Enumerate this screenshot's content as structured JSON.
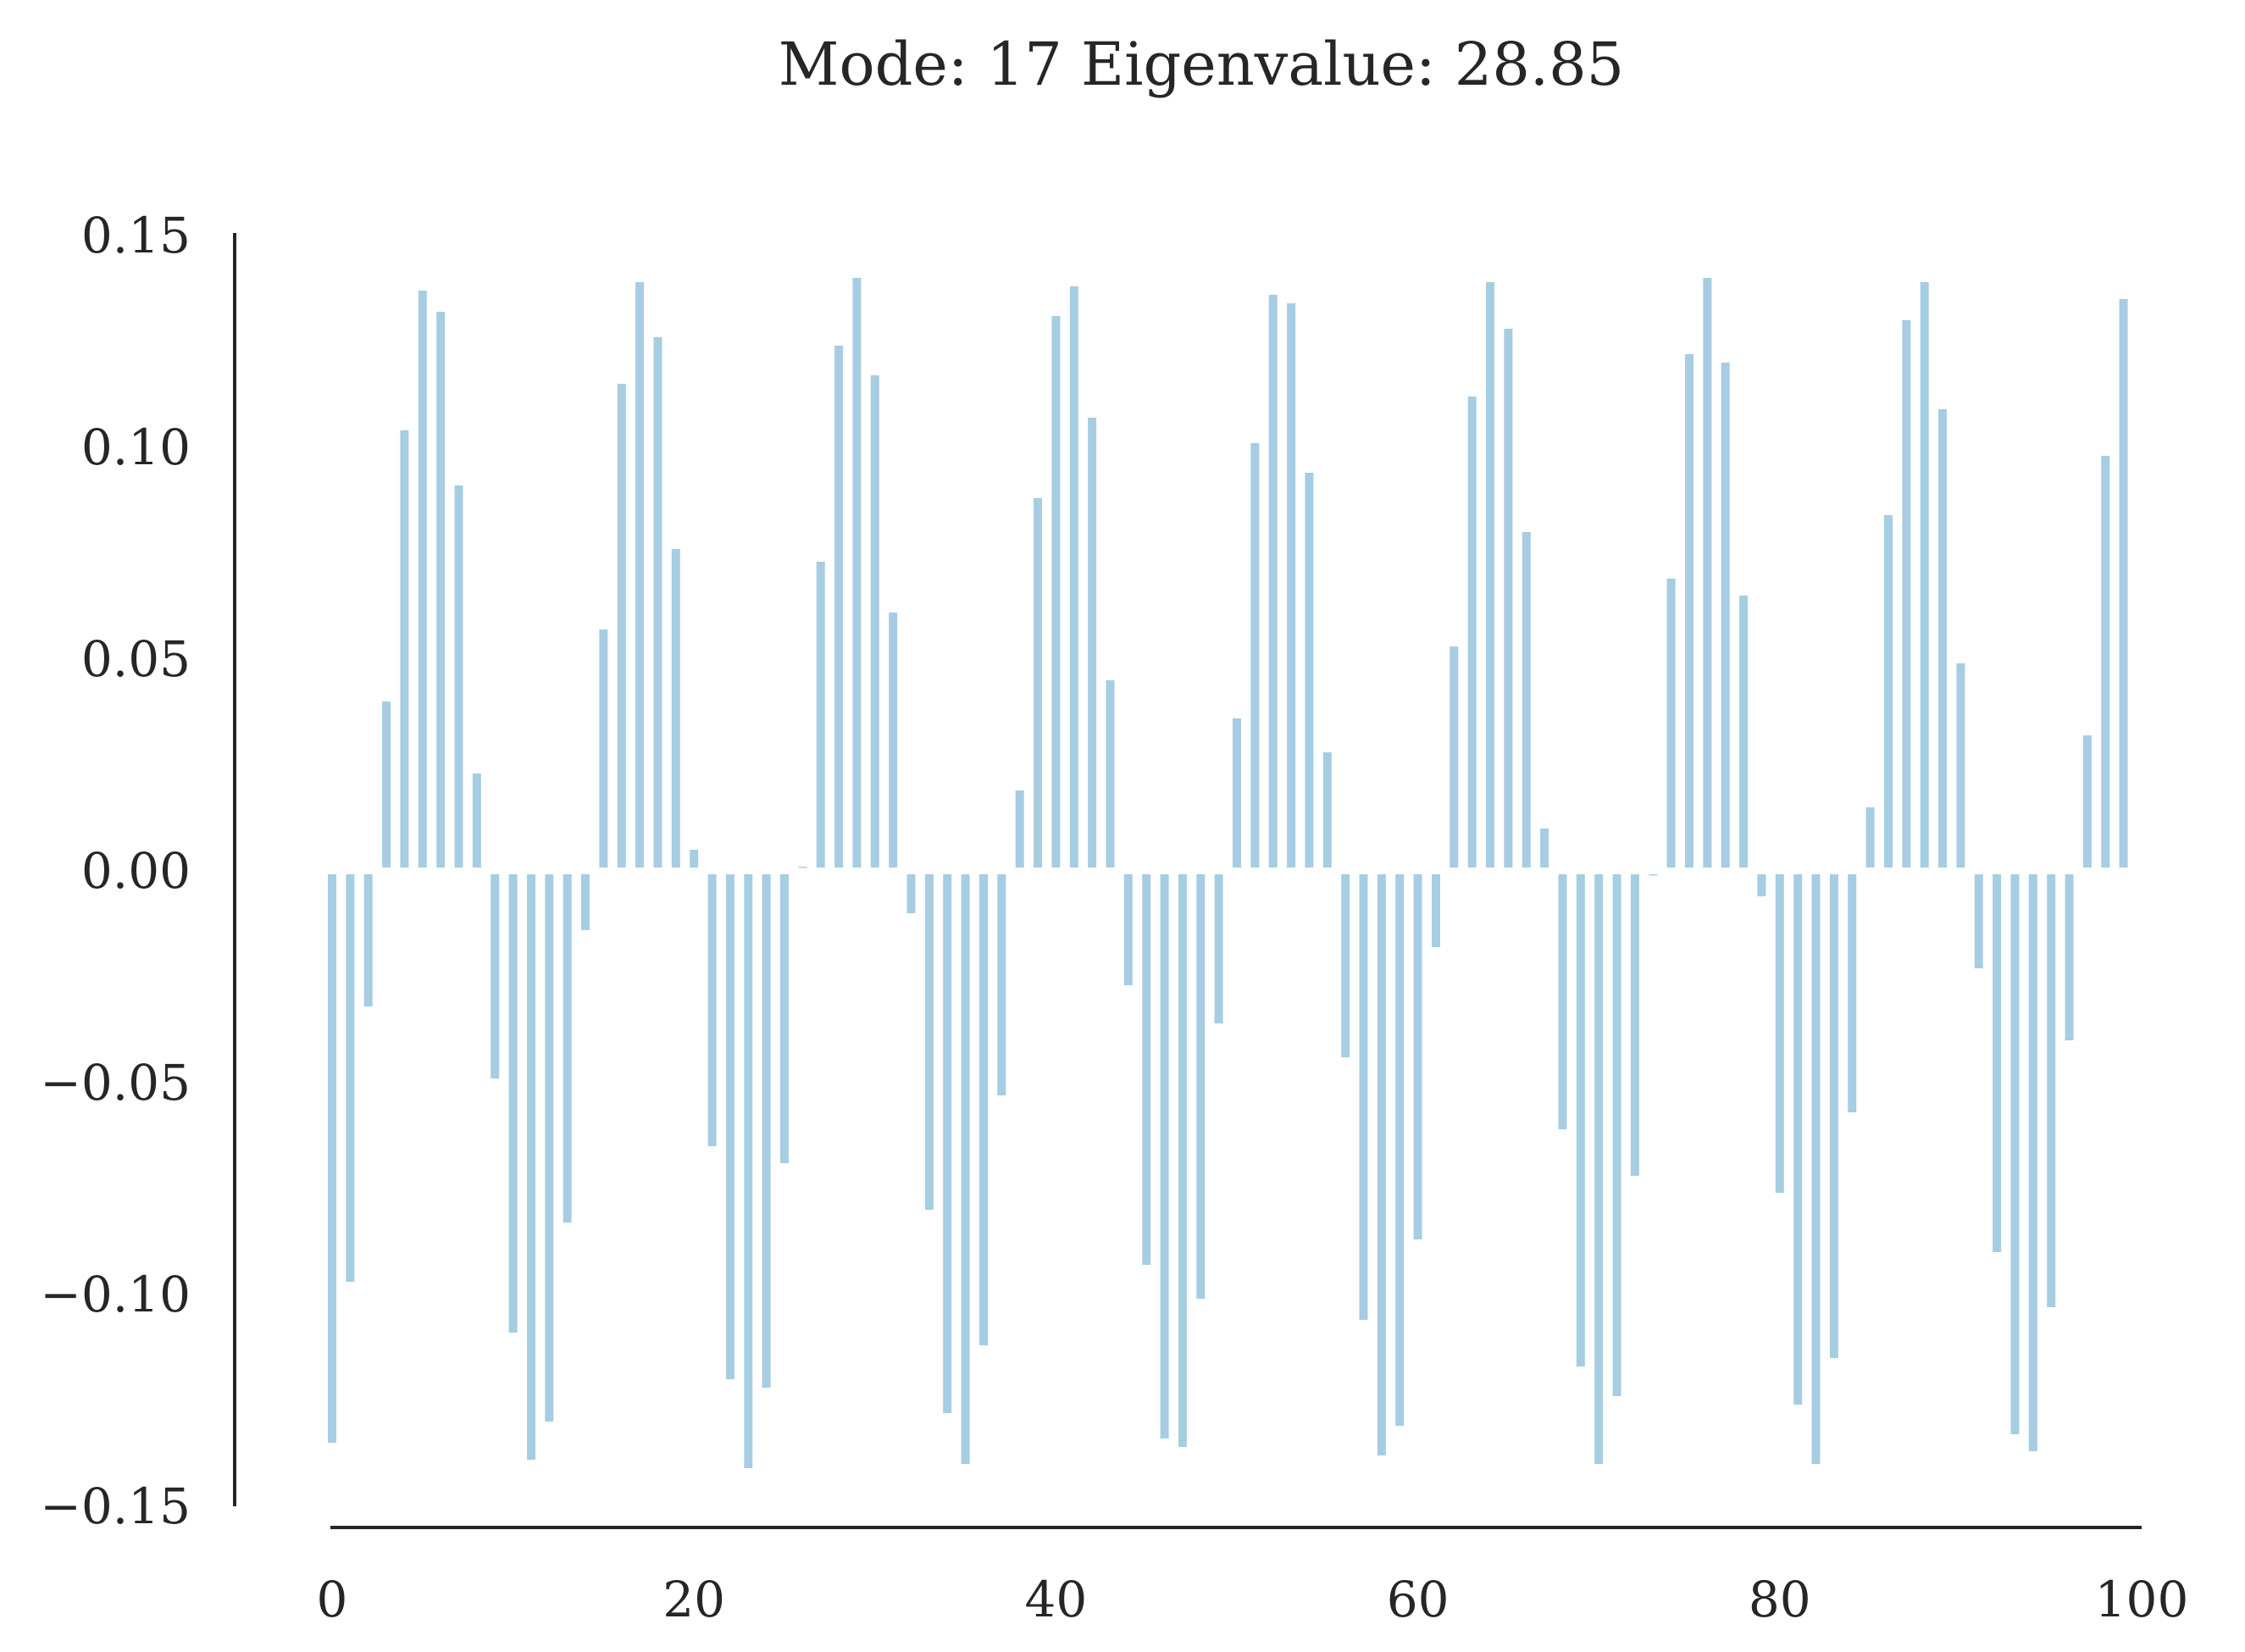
{
  "chart_data": {
    "type": "bar",
    "title": "Mode: 17 Eigenvalue: 28.85",
    "xlabel": "",
    "ylabel": "",
    "xlim": [
      0,
      100
    ],
    "ylim": [
      -0.15,
      0.15
    ],
    "x_ticks": [
      {
        "value": 0,
        "label": "0"
      },
      {
        "value": 20,
        "label": "20"
      },
      {
        "value": 40,
        "label": "40"
      },
      {
        "value": 60,
        "label": "60"
      },
      {
        "value": 80,
        "label": "80"
      },
      {
        "value": 100,
        "label": "100"
      }
    ],
    "y_ticks": [
      {
        "value": 0.15,
        "label": "0.15"
      },
      {
        "value": 0.1,
        "label": "0.10"
      },
      {
        "value": 0.05,
        "label": "0.05"
      },
      {
        "value": 0.0,
        "label": "0.00"
      },
      {
        "value": -0.05,
        "label": "−0.05"
      },
      {
        "value": -0.1,
        "label": "−0.10"
      },
      {
        "value": -0.15,
        "label": "−0.15"
      }
    ],
    "grid": false,
    "bar_color": "#a6cde2",
    "axis_color": "#262626",
    "x": [
      0,
      1,
      2,
      3,
      4,
      5,
      6,
      7,
      8,
      9,
      10,
      11,
      12,
      13,
      14,
      15,
      16,
      17,
      18,
      19,
      20,
      21,
      22,
      23,
      24,
      25,
      26,
      27,
      28,
      29,
      30,
      31,
      32,
      33,
      34,
      35,
      36,
      37,
      38,
      39,
      40,
      41,
      42,
      43,
      44,
      45,
      46,
      47,
      48,
      49,
      50,
      51,
      52,
      53,
      54,
      55,
      56,
      57,
      58,
      59,
      60,
      61,
      62,
      63,
      64,
      65,
      66,
      67,
      68,
      69,
      70,
      71,
      72,
      73,
      74,
      75,
      76,
      77,
      78,
      79,
      80,
      81,
      82,
      83,
      84,
      85,
      86,
      87,
      88,
      89,
      90,
      91,
      92,
      93,
      94,
      95,
      96,
      97,
      98,
      99
    ],
    "values": [
      -0.135,
      -0.097,
      -0.032,
      0.04,
      0.104,
      0.137,
      0.132,
      0.091,
      0.023,
      -0.049,
      -0.109,
      -0.139,
      -0.13,
      -0.083,
      -0.014,
      0.057,
      0.115,
      0.139,
      0.126,
      0.076,
      0.005,
      -0.065,
      -0.12,
      -0.141,
      -0.122,
      -0.069,
      0.001,
      0.073,
      0.124,
      0.14,
      0.117,
      0.061,
      -0.01,
      -0.08,
      -0.128,
      -0.14,
      -0.112,
      -0.053,
      0.019,
      0.088,
      0.131,
      0.138,
      0.107,
      0.045,
      -0.027,
      -0.093,
      -0.134,
      -0.136,
      -0.101,
      -0.036,
      0.036,
      0.101,
      0.136,
      0.134,
      0.094,
      0.028,
      -0.044,
      -0.106,
      -0.138,
      -0.131,
      -0.087,
      -0.018,
      0.053,
      0.112,
      0.139,
      0.128,
      0.08,
      0.01,
      -0.061,
      -0.117,
      -0.14,
      -0.124,
      -0.072,
      -0.001,
      0.069,
      0.122,
      0.14,
      0.12,
      0.065,
      -0.006,
      -0.076,
      -0.126,
      -0.14,
      -0.115,
      -0.057,
      0.015,
      0.084,
      0.13,
      0.139,
      0.109,
      0.049,
      -0.023,
      -0.09,
      -0.133,
      -0.137,
      -0.103,
      -0.04,
      0.032,
      0.098,
      0.135
    ]
  }
}
